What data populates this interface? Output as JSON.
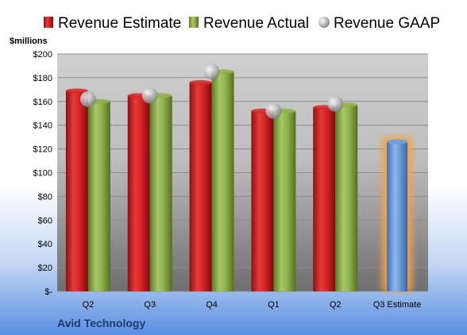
{
  "chart_data": {
    "type": "bar",
    "company": "Avid Technology",
    "units_label": "$millions",
    "categories": [
      "Q2",
      "Q3",
      "Q4",
      "Q1",
      "Q2",
      "Q3 Estimate"
    ],
    "series": [
      {
        "name": "Revenue Estimate",
        "kind": "bar",
        "color": "#d42a2a",
        "values": [
          169,
          165,
          176,
          152,
          155,
          null
        ]
      },
      {
        "name": "Revenue Actual",
        "kind": "bar",
        "color": "#8fb04a",
        "values": [
          160,
          165,
          185,
          152,
          157,
          null
        ]
      },
      {
        "name": "Revenue GAAP",
        "kind": "marker",
        "color": "#b8b8c0",
        "values": [
          162,
          165,
          185,
          152,
          158,
          null
        ]
      }
    ],
    "forecast": {
      "category_index": 5,
      "value": 126,
      "color": "#6f9ed8",
      "glow": "#f7a345"
    },
    "yticks": [
      "$-",
      "$20",
      "$40",
      "$60",
      "$80",
      "$100",
      "$120",
      "$140",
      "$160",
      "$180",
      "$200"
    ],
    "ylim": [
      0,
      200
    ],
    "grid": true,
    "legend_position": "top"
  }
}
